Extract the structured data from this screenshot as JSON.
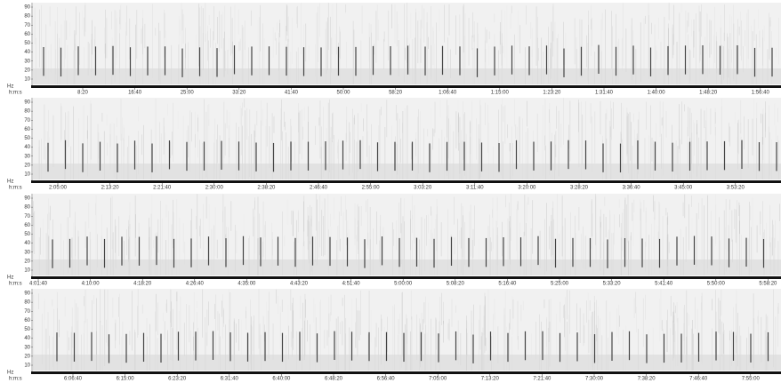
{
  "y_axis": {
    "unit": "Hz",
    "ticks": [
      10,
      20,
      30,
      40,
      50,
      60,
      70,
      80,
      90
    ]
  },
  "time_unit": "h:m:s",
  "panels": [
    {
      "time_labels": [
        "8:20",
        "16:40",
        "25:00",
        "33:20",
        "41:40",
        "50:00",
        "58:20",
        "1:06:40",
        "1:15:00",
        "1:23:20",
        "1:31:40",
        "1:40:00",
        "1:48:20",
        "1:56:40"
      ]
    },
    {
      "time_labels": [
        "2:05:00",
        "2:13:20",
        "2:21:40",
        "2:30:00",
        "2:38:20",
        "2:46:40",
        "2:55:00",
        "3:03:20",
        "3:11:40",
        "3:20:00",
        "3:28:20",
        "3:36:40",
        "3:45:00",
        "3:53:20"
      ]
    },
    {
      "time_labels": [
        "4:01:40",
        "4:10:00",
        "4:18:20",
        "4:26:40",
        "4:35:00",
        "4:43:20",
        "4:51:40",
        "5:00:00",
        "5:08:20",
        "5:16:40",
        "5:25:00",
        "5:33:20",
        "5:41:40",
        "5:50:00",
        "5:58:20"
      ]
    },
    {
      "time_labels": [
        "6:06:40",
        "6:15:00",
        "6:23:20",
        "6:31:40",
        "6:40:00",
        "6:48:20",
        "6:56:40",
        "7:05:00",
        "7:13:20",
        "7:21:40",
        "7:30:00",
        "7:38:20",
        "7:46:40",
        "7:55:00"
      ]
    }
  ]
}
